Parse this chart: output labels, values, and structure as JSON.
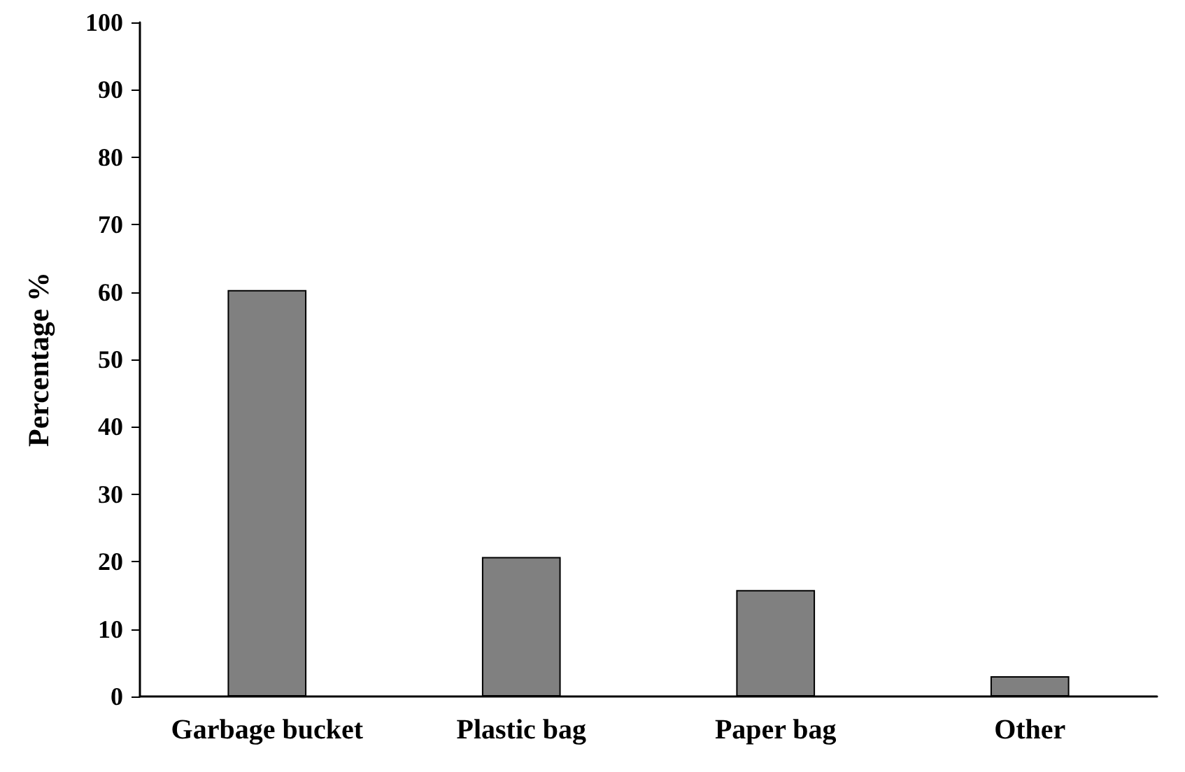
{
  "chart_data": {
    "type": "bar",
    "ylabel": "Percentage %",
    "categories": [
      "Garbage bucket",
      "Plastic bag",
      "Paper bag",
      "Other"
    ],
    "values": [
      60.3,
      20.7,
      15.8,
      3.0
    ],
    "color": "#808080",
    "ylim": [
      0,
      100
    ],
    "yticks": [
      0,
      10,
      20,
      30,
      40,
      50,
      60,
      70,
      80,
      90,
      100
    ],
    "grid": false
  }
}
